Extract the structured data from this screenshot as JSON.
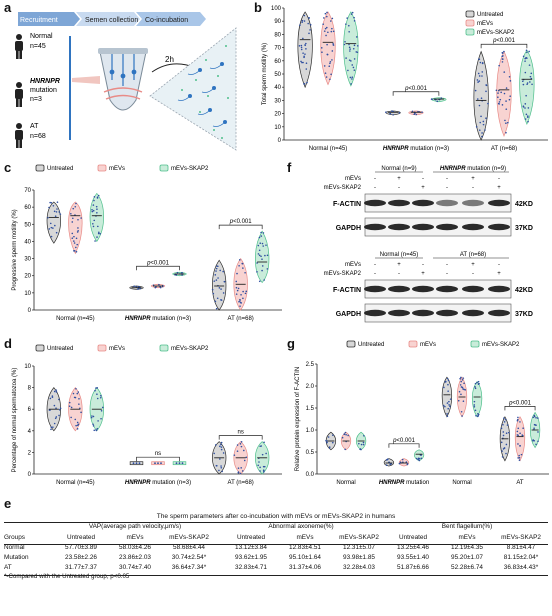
{
  "panels": {
    "a": "a",
    "b": "b",
    "c": "c",
    "d": "d",
    "e": "e",
    "f": "f",
    "g": "g"
  },
  "colors": {
    "untreated": "#2e2e2e",
    "mevs": "#e88b87",
    "skap2": "#4fbf8c",
    "untreated_fill": "#d8d8d8",
    "mevs_fill": "#f8d3d1",
    "skap2_fill": "#c9ecda",
    "recruit_bar": "#7ea6d6",
    "semen_bar": "#c8daf0",
    "coinc_bar": "#a9c6e8"
  },
  "schematic": {
    "steps": [
      "Recruitment",
      "Semen collection",
      "Co-incubation"
    ],
    "groups": [
      {
        "name": "Normal",
        "n": "n=45"
      },
      {
        "name": "HNRNPR",
        "name2": "mutation",
        "n": "n=3"
      },
      {
        "name": "AT",
        "n": "n=68"
      }
    ],
    "time": "2h",
    "icons": [
      "person-icon",
      "tube-icon",
      "sperm-icon"
    ]
  },
  "legend": [
    "Untreated",
    "mEVs",
    "mEVs-SKAP2"
  ],
  "chart_data": [
    {
      "id": "b",
      "type": "violin",
      "ylabel": "Total sperm motility (%)",
      "ylim": [
        0,
        100
      ],
      "yticks": [
        0,
        10,
        20,
        30,
        40,
        50,
        60,
        70,
        80,
        90,
        100
      ],
      "groups": [
        "Normal (n=45)",
        "HNRNPR mutation (n=3)",
        "AT (n=68)"
      ],
      "series": [
        {
          "name": "Untreated",
          "values": [
            [
              40,
              97,
              76
            ],
            [
              19,
              22,
              21
            ],
            [
              0,
              67,
              30
            ]
          ]
        },
        {
          "name": "mEVs",
          "values": [
            [
              42,
              97,
              74
            ],
            [
              19,
              22,
              21
            ],
            [
              3,
              67,
              38
            ]
          ]
        },
        {
          "name": "mEVs-SKAP2",
          "values": [
            [
              41,
              97,
              73
            ],
            [
              29,
              32,
              31
            ],
            [
              12,
              68,
              46
            ]
          ]
        }
      ],
      "annotations": [
        {
          "text": "p<0.001",
          "pair": [
            1,
            "Untreated",
            "mEVs-SKAP2"
          ]
        },
        {
          "text": "p<0.001",
          "pair": [
            2,
            "Untreated",
            "mEVs-SKAP2"
          ]
        }
      ]
    },
    {
      "id": "c",
      "type": "violin",
      "ylabel": "Progressive sperm motility (%)",
      "ylim": [
        0,
        70
      ],
      "yticks": [
        0,
        10,
        20,
        30,
        40,
        50,
        60,
        70
      ],
      "groups": [
        "Normal (n=45)",
        "HNRNPR mutation (n=3)",
        "AT (n=68)"
      ],
      "series": [
        {
          "name": "Untreated",
          "values": [
            [
              39,
              63,
              54
            ],
            [
              12,
              14,
              13
            ],
            [
              0,
              29,
              14
            ]
          ]
        },
        {
          "name": "mEVs",
          "values": [
            [
              33,
              63,
              55
            ],
            [
              13,
              15,
              14
            ],
            [
              0,
              30,
              15
            ]
          ]
        },
        {
          "name": "mEVs-SKAP2",
          "values": [
            [
              40,
              68,
              55
            ],
            [
              20,
              22,
              21
            ],
            [
              16,
              46,
              28
            ]
          ]
        }
      ],
      "annotations": [
        {
          "text": "p<0.001",
          "pair": [
            1,
            "Untreated",
            "mEVs-SKAP2"
          ]
        },
        {
          "text": "p<0.001",
          "pair": [
            2,
            "Untreated",
            "mEVs-SKAP2"
          ]
        }
      ]
    },
    {
      "id": "d",
      "type": "violin",
      "ylabel": "Percentage of normal spermatozoa (%)",
      "ylim": [
        0,
        10
      ],
      "yticks": [
        0,
        2,
        4,
        6,
        8,
        10
      ],
      "groups": [
        "Normal (n=45)",
        "HNRNPR mutation (n=3)",
        "AT (n=68)"
      ],
      "series": [
        {
          "name": "Untreated",
          "values": [
            [
              4,
              8,
              6
            ],
            [
              1,
              1,
              1
            ],
            [
              0,
              3,
              1.5
            ]
          ]
        },
        {
          "name": "mEVs",
          "values": [
            [
              4,
              8,
              6
            ],
            [
              1,
              1,
              1
            ],
            [
              0,
              3,
              1.5
            ]
          ]
        },
        {
          "name": "mEVs-SKAP2",
          "values": [
            [
              4,
              8,
              6
            ],
            [
              1,
              1,
              1
            ],
            [
              0,
              3,
              1.5
            ]
          ]
        }
      ],
      "annotations": [
        {
          "text": "ns",
          "pair": [
            1,
            "Untreated",
            "mEVs-SKAP2"
          ]
        },
        {
          "text": "ns",
          "pair": [
            2,
            "Untreated",
            "mEVs-SKAP2"
          ]
        }
      ]
    },
    {
      "id": "g",
      "type": "violin",
      "ylabel": "Relative protein expression of F-ACTIN",
      "ylim": [
        0.0,
        2.5
      ],
      "yticks": [
        0.0,
        0.5,
        1.0,
        1.5,
        2.0,
        2.5
      ],
      "groups": [
        "Normal",
        "HNRNPR mutation",
        "Normal",
        "AT"
      ],
      "series": [
        {
          "name": "Untreated",
          "values": [
            [
              0.55,
              0.95,
              0.75
            ],
            [
              0.18,
              0.35,
              0.25
            ],
            [
              1.3,
              2.2,
              1.8
            ],
            [
              0.3,
              1.3,
              0.8
            ]
          ]
        },
        {
          "name": "mEVs",
          "values": [
            [
              0.55,
              0.95,
              0.75
            ],
            [
              0.18,
              0.35,
              0.25
            ],
            [
              1.3,
              2.2,
              1.75
            ],
            [
              0.3,
              1.3,
              0.85
            ]
          ]
        },
        {
          "name": "mEVs-SKAP2",
          "values": [
            [
              0.55,
              0.95,
              0.75
            ],
            [
              0.3,
              0.55,
              0.45
            ],
            [
              1.3,
              2.1,
              1.75
            ],
            [
              0.6,
              1.4,
              1.0
            ]
          ]
        }
      ],
      "annotations": [
        {
          "text": "p<0.001",
          "pair": [
            1,
            "Untreated",
            "mEVs-SKAP2"
          ]
        },
        {
          "text": "p<0.001",
          "pair": [
            3,
            "Untreated",
            "mEVs-SKAP2"
          ]
        }
      ]
    }
  ],
  "western": {
    "top": {
      "headers": [
        {
          "text": "Normal (n=9)"
        },
        {
          "text": "HNRNPR mutation (n=9)"
        }
      ],
      "rowlabels": [
        "mEVs",
        "mEVs-SKAP2"
      ],
      "signs": [
        [
          "-",
          "+",
          "-",
          "-",
          "+",
          "-"
        ],
        [
          "-",
          "-",
          "+",
          "-",
          "-",
          "+"
        ]
      ],
      "bands": [
        {
          "name": "F-ACTIN",
          "kd": "42KD"
        },
        {
          "name": "GAPDH",
          "kd": "37KD"
        }
      ]
    },
    "bottom": {
      "headers": [
        {
          "text": "Normal (n=45)"
        },
        {
          "text": "AT (n=68)"
        }
      ],
      "rowlabels": [
        "mEVs",
        "mEVs-SKAP2"
      ],
      "signs": [
        [
          "-",
          "+",
          "-",
          "-",
          "+",
          "-"
        ],
        [
          "-",
          "-",
          "+",
          "-",
          "-",
          "+"
        ]
      ],
      "bands": [
        {
          "name": "F-ACTIN",
          "kd": "42KD"
        },
        {
          "name": "GAPDH",
          "kd": "37KD"
        }
      ]
    }
  },
  "table": {
    "title": "The sperm parameters after co-incubation with mEVs or mEVs-SKAP2 in humans",
    "group_headers": [
      "VAP(average path velocity,μm/s)",
      "Abnormal axoneme(%)",
      "Bent flagellum(%)"
    ],
    "col_headers": [
      "Groups",
      "Untreated",
      "mEVs",
      "mEVs-SKAP2",
      "Untreated",
      "mEVs",
      "mEVs-SKAP2",
      "Untreated",
      "mEVs",
      "mEVs-SKAP2"
    ],
    "rows": [
      [
        "Normal",
        "57.70±3.89",
        "58.03±4.26",
        "58.68±4.44",
        "13.12±3.84",
        "12.83±4.51",
        "12.31±5.07",
        "13.25±4.46",
        "12.19±4.35",
        "8.81±4.47"
      ],
      [
        "Mutation",
        "23.58±2.26",
        "23.86±2.03",
        "30.74±2.54*",
        "93.62±1.95",
        "95.10±1.64",
        "93.98±1.85",
        "93.55±1.40",
        "95.20±1.07",
        "81.15±2.04*"
      ],
      [
        "AT",
        "31.77±7.37",
        "30.74±7.40",
        "36.64±7.34*",
        "32.83±4.71",
        "31.37±4.06",
        "32.28±4.03",
        "51.87±6.66",
        "52.28±6.74",
        "36.83±4.43*"
      ]
    ],
    "footnote": "*-Compared with the Untreated group, p<0.05"
  }
}
